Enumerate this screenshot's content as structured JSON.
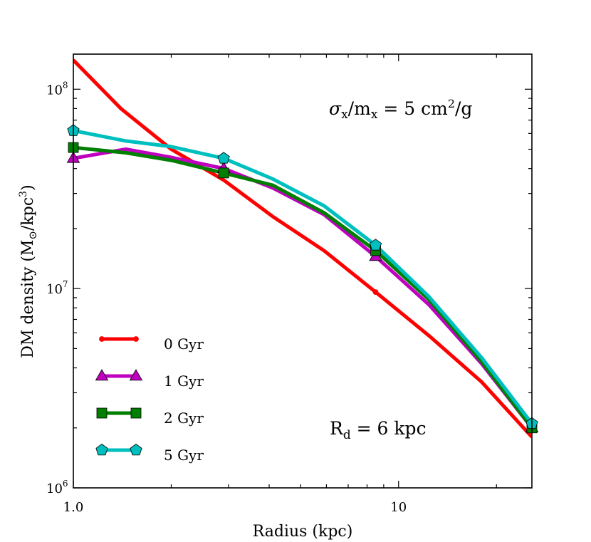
{
  "chart_data": {
    "type": "line",
    "x_scale": "log",
    "y_scale": "log",
    "xlim": [
      1.0,
      25.7
    ],
    "ylim": [
      1000000,
      150000000
    ],
    "xlabel": "Radius (kpc)",
    "ylabel": {
      "main": "DM density (M",
      "sub": "⊙",
      "mid": "/kpc",
      "sup": "3",
      "end": ")"
    },
    "x_tick_labels": [
      {
        "value": 1.0,
        "label": "1.0"
      },
      {
        "value": 10,
        "label": "10"
      }
    ],
    "y_tick_labels": [
      {
        "value": 1000000,
        "base": "10",
        "exp": "6"
      },
      {
        "value": 10000000,
        "base": "10",
        "exp": "7"
      },
      {
        "value": 100000000,
        "base": "10",
        "exp": "8"
      }
    ],
    "annotation_top": {
      "sigma": "σ",
      "x_sub": "x",
      "slash_m": "/m",
      "m_sub": "x",
      "eq": " = 5 cm",
      "sup": "2",
      "tail": "/g"
    },
    "annotation_bottom": {
      "r": "R",
      "r_sub": "d",
      "tail": " = 6 kpc"
    },
    "series": [
      {
        "name": "0 Gyr",
        "color": "#ff0000",
        "marker": "dot",
        "x": [
          1.0,
          1.4,
          2.0,
          2.9,
          4.1,
          5.9,
          8.5,
          12.4,
          18.0,
          25.7
        ],
        "y": [
          140000000,
          80000000,
          50000000,
          35000000,
          23000000,
          15500000,
          9600000,
          5800000,
          3400000,
          1800000
        ],
        "marker_x": [
          8.5
        ]
      },
      {
        "name": "1 Gyr",
        "color": "#bf00bf",
        "marker": "triangle",
        "x": [
          1.0,
          1.45,
          2.0,
          2.9,
          4.1,
          5.9,
          8.5,
          12.4,
          18.0,
          25.7
        ],
        "y": [
          45000000,
          50000000,
          45500000,
          40000000,
          32000000,
          23500000,
          14500000,
          8300000,
          4200000,
          2000000
        ],
        "marker_x": [
          1.0,
          2.9,
          8.5,
          25.7
        ]
      },
      {
        "name": "2 Gyr",
        "color": "#007f00",
        "marker": "square",
        "x": [
          1.0,
          1.45,
          2.0,
          2.9,
          4.1,
          5.9,
          8.5,
          12.4,
          18.0,
          25.7
        ],
        "y": [
          51000000,
          48000000,
          44000000,
          38000000,
          33000000,
          24000000,
          15500000,
          8800000,
          4300000,
          2000000
        ],
        "marker_x": [
          1.0,
          2.9,
          8.5,
          25.7
        ]
      },
      {
        "name": "5 Gyr",
        "color": "#00bfbf",
        "marker": "pentagon",
        "x": [
          1.0,
          1.45,
          2.0,
          2.9,
          4.1,
          5.9,
          8.5,
          12.4,
          18.0,
          25.7
        ],
        "y": [
          62000000,
          55000000,
          51500000,
          45000000,
          35500000,
          26000000,
          16500000,
          9100000,
          4500000,
          2100000
        ],
        "marker_x": [
          1.0,
          2.9,
          8.5,
          25.7
        ]
      }
    ]
  }
}
